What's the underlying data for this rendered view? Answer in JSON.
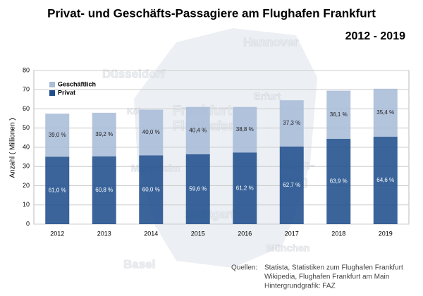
{
  "chart_data": {
    "type": "stacked_bar",
    "title": "Privat- und Geschäfts-Passagiere am Flughafen Frankfurt",
    "subtitle": "2012 - 2019",
    "y_label": "Anzahl  ( Millionen )",
    "categories": [
      "2012",
      "2013",
      "2014",
      "2015",
      "2016",
      "2017",
      "2018",
      "2019"
    ],
    "series": [
      {
        "name": "Privat",
        "color": "#1f4e8c",
        "values": [
          35.1,
          35.3,
          35.8,
          36.4,
          37.3,
          40.4,
          44.4,
          45.5
        ],
        "share_labels": [
          "61,0 %",
          "60,8 %",
          "60,0 %",
          "59,6 %",
          "61,2 %",
          "62,7 %",
          "63,9 %",
          "64,6 %"
        ]
      },
      {
        "name": "Geschäftlich",
        "color": "#a9bcd8",
        "values": [
          22.4,
          22.7,
          23.8,
          24.6,
          23.7,
          24.1,
          25.1,
          25.0
        ],
        "share_labels": [
          "39,0 %",
          "39,2 %",
          "40,0 %",
          "40,4 %",
          "38,8 %",
          "37,3 %",
          "36,1 %",
          "35,4 %"
        ]
      }
    ],
    "ylim": [
      0,
      80
    ],
    "yticks": [
      0,
      10,
      20,
      30,
      40,
      50,
      60,
      70,
      80
    ],
    "grid": true,
    "legend": "top-left",
    "sources": {
      "heading": "Quellen:",
      "lines": [
        "Statista, Statistiken zum Flughafen Frankfurt",
        "Wikipedia, Flughafen Frankfurt am Main",
        "Hintergrundgrafik:  FAZ"
      ]
    },
    "background_map_labels": [
      "Hannover",
      "Düsseldorf",
      "Köln",
      "Erfurt",
      "Frankfurt",
      "Flughafen",
      "Mannheim",
      "Nürn-",
      "berg",
      "Stuttgart",
      "München",
      "Basel"
    ]
  }
}
